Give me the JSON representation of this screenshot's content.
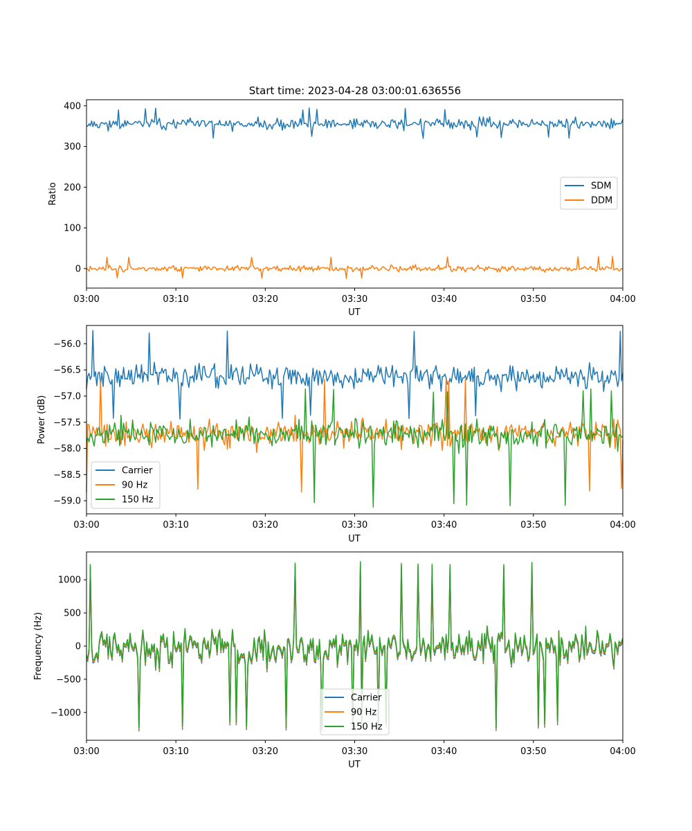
{
  "colors": {
    "blue": "#1f77b4",
    "orange": "#ff7f0e",
    "green": "#2ca02c"
  },
  "chart_data": [
    {
      "type": "line",
      "title": "Start time: 2023-04-28 03:00:01.636556",
      "xlabel": "UT",
      "ylabel": "Ratio",
      "x_range": [
        "03:00",
        "04:00"
      ],
      "xticks": [
        "03:00",
        "03:10",
        "03:20",
        "03:30",
        "03:40",
        "03:50",
        "04:00"
      ],
      "yticks": [
        0,
        100,
        200,
        300,
        400
      ],
      "ylim": [
        -48,
        415
      ],
      "legend_position": "center-right",
      "grid": false,
      "series": [
        {
          "name": "SDM",
          "color": "#1f77b4",
          "mean": 355,
          "amplitude": 17,
          "spike_up": 395,
          "spike_down": 320,
          "points": 420,
          "seed": 11
        },
        {
          "name": "DDM",
          "color": "#ff7f0e",
          "mean": 0,
          "amplitude": 9,
          "spike_up": 30,
          "spike_down": -25,
          "points": 420,
          "seed": 23
        }
      ]
    },
    {
      "type": "line",
      "title": "",
      "xlabel": "UT",
      "ylabel": "Power (dB)",
      "x_range": [
        "03:00",
        "04:00"
      ],
      "xticks": [
        "03:00",
        "03:10",
        "03:20",
        "03:30",
        "03:40",
        "03:50",
        "04:00"
      ],
      "yticks": [
        -56.0,
        -56.5,
        -57.0,
        -57.5,
        -58.0,
        -58.5,
        -59.0
      ],
      "ytick_labels": [
        "−56.0",
        "−56.5",
        "−57.0",
        "−57.5",
        "−58.0",
        "−58.5",
        "−59.0"
      ],
      "ylim": [
        -59.25,
        -55.65
      ],
      "legend_position": "lower-left",
      "grid": false,
      "series": [
        {
          "name": "Carrier",
          "color": "#1f77b4",
          "mean": -56.62,
          "amplitude": 0.28,
          "spike_up": -55.72,
          "spike_down": -57.45,
          "points": 420,
          "seed": 37
        },
        {
          "name": "90 Hz",
          "color": "#ff7f0e",
          "mean": -57.72,
          "amplitude": 0.3,
          "spike_up": -56.65,
          "spike_down": -58.85,
          "points": 420,
          "seed": 41
        },
        {
          "name": "150 Hz",
          "color": "#2ca02c",
          "mean": -57.72,
          "amplitude": 0.32,
          "spike_up": -56.85,
          "spike_down": -59.12,
          "points": 420,
          "seed": 53
        }
      ]
    },
    {
      "type": "line",
      "title": "",
      "xlabel": "UT",
      "ylabel": "Frequency (Hz)",
      "x_range": [
        "03:00",
        "04:00"
      ],
      "xticks": [
        "03:00",
        "03:10",
        "03:20",
        "03:30",
        "03:40",
        "03:50",
        "04:00"
      ],
      "yticks": [
        1000,
        500,
        0,
        -500,
        -1000
      ],
      "ytick_labels": [
        "1000",
        "500",
        "0",
        "−500",
        "−1000"
      ],
      "ylim": [
        -1420,
        1420
      ],
      "legend_position": "lower-center",
      "grid": false,
      "series": [
        {
          "name": "Carrier",
          "color": "#1f77b4",
          "mean": -40,
          "amplitude": 320,
          "spike_up": 1250,
          "spike_down": -1280,
          "points": 420,
          "seed": 67
        },
        {
          "name": "90 Hz",
          "color": "#ff7f0e",
          "mean": -20,
          "amplitude": 320,
          "spike_up": 1270,
          "spike_down": -1260,
          "points": 420,
          "seed": 67
        },
        {
          "name": "150 Hz",
          "color": "#2ca02c",
          "mean": 0,
          "amplitude": 320,
          "spike_up": 1300,
          "spike_down": -1240,
          "points": 420,
          "seed": 67
        }
      ]
    }
  ]
}
